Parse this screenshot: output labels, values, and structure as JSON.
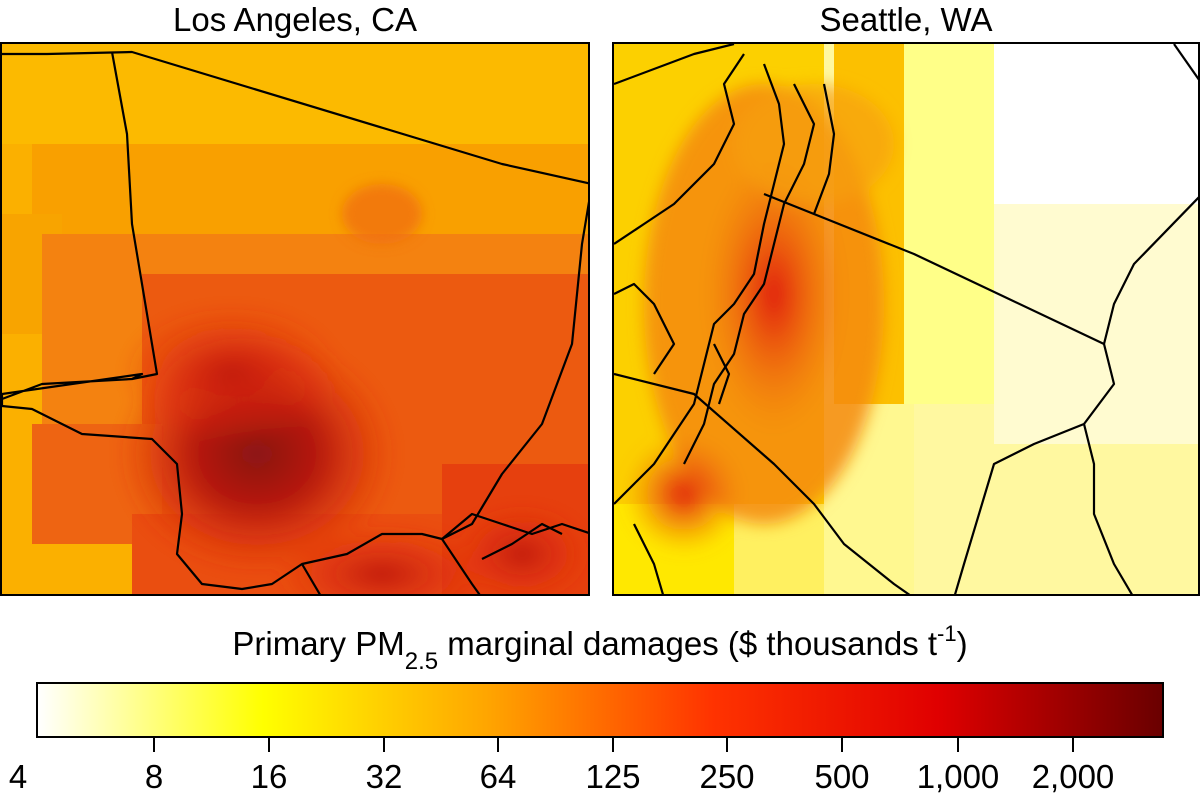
{
  "panels": [
    {
      "title": "Los Angeles, CA"
    },
    {
      "title": "Seattle, WA"
    }
  ],
  "legend": {
    "title_main": "Primary PM",
    "title_sub": "2.5",
    "title_rest": " marginal damages ($ thousands t",
    "title_sup": "-1",
    "title_end": ")",
    "tick_labels": [
      "4",
      "8",
      "16",
      "32",
      "64",
      "125",
      "250",
      "500",
      "1,000",
      "2,000"
    ],
    "scale": "log",
    "colors": [
      "#ffffff",
      "#ffff00",
      "#ffa500",
      "#ff3300",
      "#e00000",
      "#6a0000"
    ]
  }
}
